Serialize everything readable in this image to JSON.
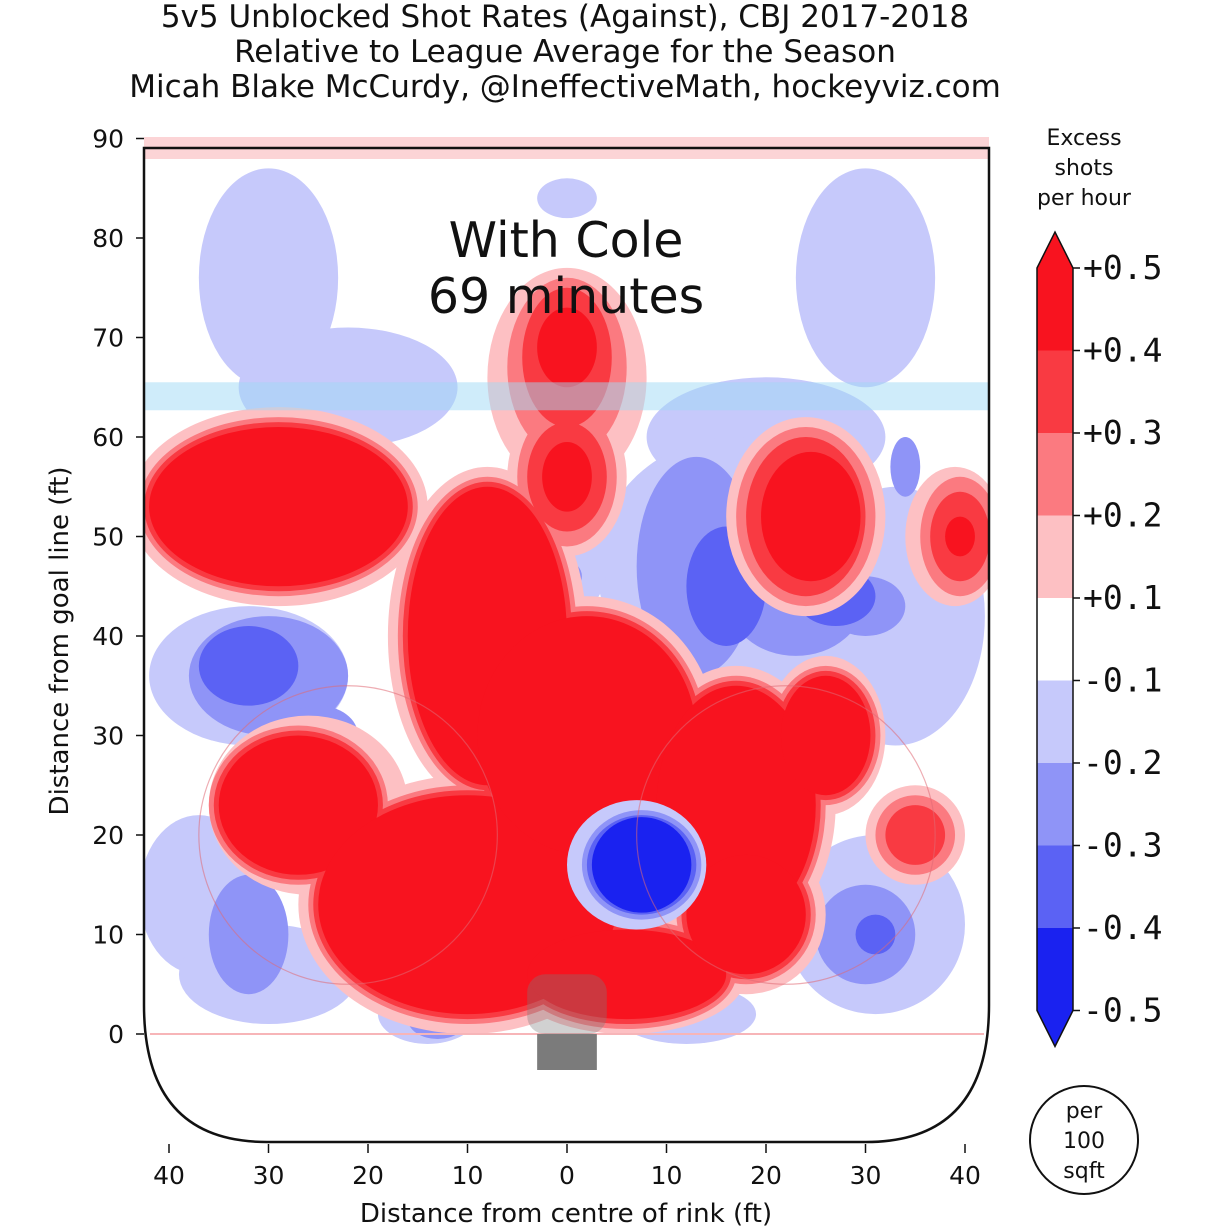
{
  "chart_data": {
    "type": "heatmap",
    "title": [
      "5v5 Unblocked Shot Rates (Against), CBJ 2017-2018",
      "Relative to League Average for the Season",
      "Micah Blake McCurdy, @IneffectiveMath, hockeyviz.com"
    ],
    "xlabel": "Distance from centre of rink (ft)",
    "ylabel": "Distance from goal line (ft)",
    "xlim": [
      -42.5,
      42.5
    ],
    "ylim": [
      -11,
      89
    ],
    "x_ticks": [
      -40,
      -30,
      -20,
      -10,
      0,
      10,
      20,
      30,
      40
    ],
    "x_tick_labels": [
      "40",
      "30",
      "20",
      "10",
      "0",
      "10",
      "20",
      "30",
      "40"
    ],
    "y_ticks": [
      0,
      10,
      20,
      30,
      40,
      50,
      60,
      70,
      80,
      90
    ],
    "y_tick_labels": [
      "0",
      "10",
      "20",
      "30",
      "40",
      "50",
      "60",
      "70",
      "80",
      "90"
    ],
    "annotation": [
      "With Cole",
      "69 minutes"
    ],
    "colorbar": {
      "title": [
        "Excess",
        "shots",
        "per hour"
      ],
      "unit_label": [
        "per",
        "100",
        "sqft"
      ],
      "tick_values": [
        0.5,
        0.4,
        0.3,
        0.2,
        0.1,
        -0.1,
        -0.2,
        -0.3,
        -0.4,
        -0.5
      ],
      "tick_labels": [
        "+0.5",
        "+0.4",
        "+0.3",
        "+0.2",
        "+0.1",
        "-0.1",
        "-0.2",
        "-0.3",
        "-0.4",
        "-0.5"
      ],
      "levels": [
        {
          "from": 0.4,
          "to": 0.5,
          "color": "#f8131f"
        },
        {
          "from": 0.3,
          "to": 0.4,
          "color": "#f93a42"
        },
        {
          "from": 0.2,
          "to": 0.3,
          "color": "#fb7a80"
        },
        {
          "from": 0.1,
          "to": 0.2,
          "color": "#fdc0c3"
        },
        {
          "from": -0.1,
          "to": 0.1,
          "color": "#ffffff"
        },
        {
          "from": -0.2,
          "to": -0.1,
          "color": "#c6c9fb"
        },
        {
          "from": -0.3,
          "to": -0.2,
          "color": "#8f94f7"
        },
        {
          "from": -0.4,
          "to": -0.3,
          "color": "#5b62f4"
        },
        {
          "from": -0.5,
          "to": -0.4,
          "color": "#1a22f0"
        }
      ],
      "over_color": "#f8131f",
      "under_color": "#1a22f0"
    },
    "regions": [
      {
        "level": -0.15,
        "cx": -30,
        "cy": 76,
        "rx": 7,
        "ry": 11
      },
      {
        "level": -0.15,
        "cx": -22,
        "cy": 65,
        "rx": 11,
        "ry": 6
      },
      {
        "level": -0.15,
        "cx": 0,
        "cy": 84,
        "rx": 3,
        "ry": 2
      },
      {
        "level": -0.15,
        "cx": 30,
        "cy": 76,
        "rx": 7,
        "ry": 11
      },
      {
        "level": -0.15,
        "cx": 20,
        "cy": 60,
        "rx": 12,
        "ry": 6
      },
      {
        "level": -0.15,
        "cx": 17,
        "cy": 47,
        "rx": 14,
        "ry": 13
      },
      {
        "level": -0.15,
        "cx": 33,
        "cy": 42,
        "rx": 9,
        "ry": 13
      },
      {
        "level": -0.15,
        "cx": -37,
        "cy": 14,
        "rx": 6,
        "ry": 8
      },
      {
        "level": -0.15,
        "cx": -30,
        "cy": 6,
        "rx": 9,
        "ry": 5
      },
      {
        "level": -0.15,
        "cx": 31,
        "cy": 11,
        "rx": 9,
        "ry": 9
      },
      {
        "level": -0.15,
        "cx": -32,
        "cy": 36,
        "rx": 10,
        "ry": 7
      },
      {
        "level": -0.15,
        "cx": 0,
        "cy": 47,
        "rx": 4,
        "ry": 5
      },
      {
        "level": -0.15,
        "cx": 12,
        "cy": 2,
        "rx": 7,
        "ry": 3
      },
      {
        "level": -0.15,
        "cx": -14,
        "cy": 2,
        "rx": 5,
        "ry": 3
      },
      {
        "level": -0.25,
        "cx": -27,
        "cy": 59,
        "rx": 7,
        "ry": 3
      },
      {
        "level": -0.25,
        "cx": -30,
        "cy": 36,
        "rx": 8,
        "ry": 6
      },
      {
        "level": -0.25,
        "cx": -25,
        "cy": 30,
        "rx": 4,
        "ry": 3
      },
      {
        "level": -0.25,
        "cx": 13,
        "cy": 47,
        "rx": 6,
        "ry": 11
      },
      {
        "level": -0.25,
        "cx": 23,
        "cy": 44,
        "rx": 7,
        "ry": 6
      },
      {
        "level": -0.25,
        "cx": 30,
        "cy": 43,
        "rx": 4,
        "ry": 3
      },
      {
        "level": -0.25,
        "cx": -32,
        "cy": 10,
        "rx": 4,
        "ry": 6
      },
      {
        "level": -0.25,
        "cx": 30,
        "cy": 10,
        "rx": 5,
        "ry": 5
      },
      {
        "level": -0.25,
        "cx": 34,
        "cy": 57,
        "rx": 1.5,
        "ry": 3
      },
      {
        "level": -0.25,
        "cx": 0,
        "cy": 46,
        "rx": 1.5,
        "ry": 1.5
      },
      {
        "level": -0.25,
        "cx": -13,
        "cy": 1.5,
        "rx": 3,
        "ry": 2
      },
      {
        "level": -0.35,
        "cx": -32,
        "cy": 37,
        "rx": 5,
        "ry": 4
      },
      {
        "level": -0.35,
        "cx": 16,
        "cy": 45,
        "rx": 4,
        "ry": 6
      },
      {
        "level": -0.35,
        "cx": 27,
        "cy": 44,
        "rx": 4,
        "ry": 3
      },
      {
        "level": -0.35,
        "cx": 31,
        "cy": 10,
        "rx": 2,
        "ry": 2
      },
      {
        "level": -0.15,
        "cx": 7,
        "cy": 17,
        "rx": 7.5,
        "ry": 7.5
      },
      {
        "level": -0.25,
        "cx": 7.5,
        "cy": 17,
        "rx": 6.5,
        "ry": 6.5
      },
      {
        "level": -0.35,
        "cx": 7.5,
        "cy": 17,
        "rx": 6,
        "ry": 6
      },
      {
        "level": -0.45,
        "cx": 7.5,
        "cy": 17,
        "rx": 5.5,
        "ry": 5.5
      },
      {
        "level": 0.15,
        "cx": -29,
        "cy": 53,
        "rx": 15,
        "ry": 10
      },
      {
        "level": 0.15,
        "cx": -8,
        "cy": 40,
        "rx": 10,
        "ry": 17
      },
      {
        "level": 0.15,
        "cx": -26,
        "cy": 23,
        "rx": 10,
        "ry": 9
      },
      {
        "level": 0.15,
        "cx": -10,
        "cy": 13,
        "rx": 17,
        "ry": 13
      },
      {
        "level": 0.15,
        "cx": 2,
        "cy": 30,
        "rx": 13,
        "ry": 14
      },
      {
        "level": 0.15,
        "cx": 6,
        "cy": 6,
        "rx": 12,
        "ry": 6
      },
      {
        "level": 0.15,
        "cx": 17,
        "cy": 23,
        "rx": 10,
        "ry": 14
      },
      {
        "level": 0.15,
        "cx": 26,
        "cy": 30,
        "rx": 6,
        "ry": 8
      },
      {
        "level": 0.15,
        "cx": 18,
        "cy": 12,
        "rx": 8,
        "ry": 8
      },
      {
        "level": 0.15,
        "cx": 0,
        "cy": 66,
        "rx": 8,
        "ry": 11
      },
      {
        "level": 0.15,
        "cx": 0,
        "cy": 56,
        "rx": 6,
        "ry": 8
      },
      {
        "level": 0.15,
        "cx": 24,
        "cy": 52,
        "rx": 8,
        "ry": 10
      },
      {
        "level": 0.15,
        "cx": 39,
        "cy": 50,
        "rx": 5,
        "ry": 7
      },
      {
        "level": 0.15,
        "cx": 35,
        "cy": 20,
        "rx": 5,
        "ry": 5
      },
      {
        "level": 0.25,
        "cx": -29,
        "cy": 53,
        "rx": 14,
        "ry": 9
      },
      {
        "level": 0.25,
        "cx": -8,
        "cy": 40,
        "rx": 9,
        "ry": 16
      },
      {
        "level": 0.25,
        "cx": -27,
        "cy": 23,
        "rx": 9,
        "ry": 8
      },
      {
        "level": 0.25,
        "cx": -10,
        "cy": 13,
        "rx": 16,
        "ry": 12
      },
      {
        "level": 0.25,
        "cx": 2,
        "cy": 30,
        "rx": 12,
        "ry": 13
      },
      {
        "level": 0.25,
        "cx": 6,
        "cy": 6,
        "rx": 11,
        "ry": 5.5
      },
      {
        "level": 0.25,
        "cx": 17,
        "cy": 23,
        "rx": 9,
        "ry": 13
      },
      {
        "level": 0.25,
        "cx": 26,
        "cy": 30,
        "rx": 5.5,
        "ry": 7
      },
      {
        "level": 0.25,
        "cx": 18,
        "cy": 12,
        "rx": 7,
        "ry": 7
      },
      {
        "level": 0.25,
        "cx": 0,
        "cy": 67,
        "rx": 6,
        "ry": 9
      },
      {
        "level": 0.25,
        "cx": 0,
        "cy": 56,
        "rx": 5,
        "ry": 7
      },
      {
        "level": 0.25,
        "cx": 24,
        "cy": 52,
        "rx": 7,
        "ry": 9
      },
      {
        "level": 0.25,
        "cx": 39.5,
        "cy": 50,
        "rx": 4,
        "ry": 6
      },
      {
        "level": 0.25,
        "cx": 35,
        "cy": 20,
        "rx": 4,
        "ry": 4
      },
      {
        "level": 0.35,
        "cx": -29,
        "cy": 53,
        "rx": 13.5,
        "ry": 8.5
      },
      {
        "level": 0.35,
        "cx": -8,
        "cy": 40,
        "rx": 8.5,
        "ry": 15.5
      },
      {
        "level": 0.35,
        "cx": -27,
        "cy": 23,
        "rx": 8.5,
        "ry": 7.5
      },
      {
        "level": 0.35,
        "cx": -10,
        "cy": 13,
        "rx": 15.5,
        "ry": 11.5
      },
      {
        "level": 0.35,
        "cx": 2,
        "cy": 30,
        "rx": 11.5,
        "ry": 12.5
      },
      {
        "level": 0.35,
        "cx": 6,
        "cy": 6,
        "rx": 10.5,
        "ry": 5
      },
      {
        "level": 0.35,
        "cx": 17,
        "cy": 23,
        "rx": 8.5,
        "ry": 12.5
      },
      {
        "level": 0.35,
        "cx": 26,
        "cy": 30,
        "rx": 5,
        "ry": 6.5
      },
      {
        "level": 0.35,
        "cx": 18,
        "cy": 12,
        "rx": 6.5,
        "ry": 6.5
      },
      {
        "level": 0.35,
        "cx": 0,
        "cy": 68,
        "rx": 4.5,
        "ry": 7
      },
      {
        "level": 0.35,
        "cx": 0,
        "cy": 56,
        "rx": 4,
        "ry": 5.5
      },
      {
        "level": 0.35,
        "cx": 24,
        "cy": 52,
        "rx": 6,
        "ry": 8
      },
      {
        "level": 0.35,
        "cx": 39.5,
        "cy": 50,
        "rx": 3,
        "ry": 4.5
      },
      {
        "level": 0.35,
        "cx": 35,
        "cy": 20,
        "rx": 3,
        "ry": 3
      },
      {
        "level": 0.45,
        "cx": -29,
        "cy": 53,
        "rx": 13,
        "ry": 8
      },
      {
        "level": 0.45,
        "cx": -8,
        "cy": 40,
        "rx": 8,
        "ry": 15
      },
      {
        "level": 0.45,
        "cx": -27,
        "cy": 23,
        "rx": 8,
        "ry": 7
      },
      {
        "level": 0.45,
        "cx": -10,
        "cy": 13,
        "rx": 15,
        "ry": 11
      },
      {
        "level": 0.45,
        "cx": 2,
        "cy": 30,
        "rx": 11,
        "ry": 12
      },
      {
        "level": 0.45,
        "cx": 6,
        "cy": 6,
        "rx": 10,
        "ry": 4.5
      },
      {
        "level": 0.45,
        "cx": 17,
        "cy": 23,
        "rx": 8,
        "ry": 12
      },
      {
        "level": 0.45,
        "cx": 26,
        "cy": 30,
        "rx": 4.5,
        "ry": 6
      },
      {
        "level": 0.45,
        "cx": 18,
        "cy": 12,
        "rx": 6,
        "ry": 6
      },
      {
        "level": 0.45,
        "cx": 0,
        "cy": 69,
        "rx": 3,
        "ry": 4
      },
      {
        "level": 0.45,
        "cx": 0,
        "cy": 56,
        "rx": 2.5,
        "ry": 3.5
      },
      {
        "level": 0.45,
        "cx": 24.5,
        "cy": 52,
        "rx": 5,
        "ry": 6.5
      },
      {
        "level": 0.45,
        "cx": 39.5,
        "cy": 50,
        "rx": 1.5,
        "ry": 2
      },
      {
        "level": -0.15,
        "cx": 7,
        "cy": 17,
        "rx": 7,
        "ry": 6.5
      },
      {
        "level": -0.25,
        "cx": 7.5,
        "cy": 17,
        "rx": 6,
        "ry": 5.5
      },
      {
        "level": -0.35,
        "cx": 7.5,
        "cy": 17,
        "rx": 5.5,
        "ry": 5
      },
      {
        "level": -0.45,
        "cx": 7.5,
        "cy": 17,
        "rx": 5,
        "ry": 4.8
      }
    ]
  }
}
